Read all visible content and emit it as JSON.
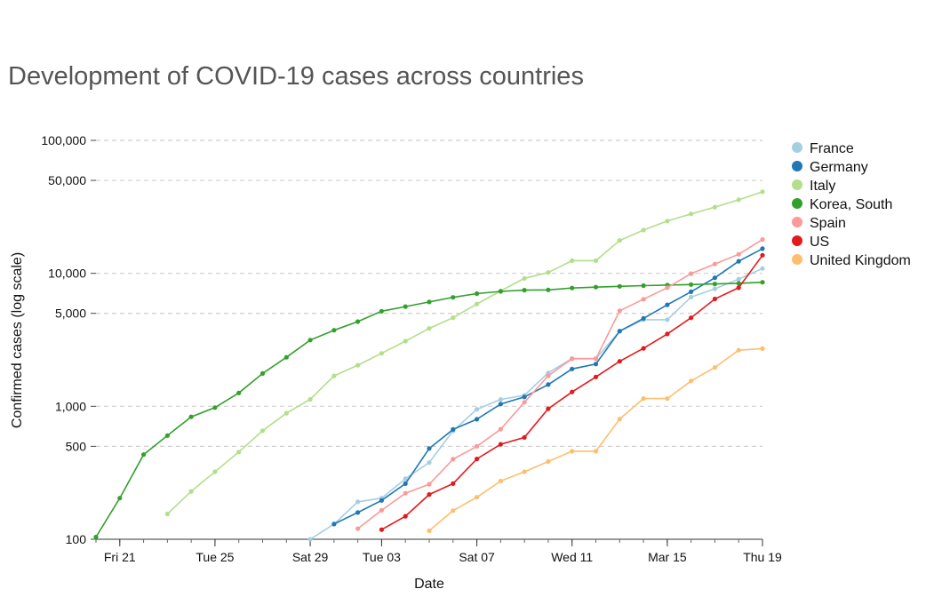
{
  "chart_data": {
    "type": "line",
    "title": "Development of COVID-19 cases across countries",
    "xlabel": "Date",
    "ylabel": "Confirmed cases (log scale)",
    "yscale": "log",
    "ylim": [
      100,
      100000
    ],
    "xlim": [
      "2020-02-20",
      "2020-03-19"
    ],
    "grid": "horizontal dashed",
    "legend_position": "right",
    "y_ticks": [
      {
        "value": 100,
        "label": "100"
      },
      {
        "value": 500,
        "label": "500"
      },
      {
        "value": 1000,
        "label": "1,000"
      },
      {
        "value": 5000,
        "label": "5,000"
      },
      {
        "value": 10000,
        "label": "10,000"
      },
      {
        "value": 50000,
        "label": "50,000"
      },
      {
        "value": 100000,
        "label": "100,000"
      }
    ],
    "x_ticks": [
      {
        "date": "2020-02-21",
        "label": "Fri 21"
      },
      {
        "date": "2020-02-25",
        "label": "Tue 25"
      },
      {
        "date": "2020-02-29",
        "label": "Sat 29"
      },
      {
        "date": "2020-03-03",
        "label": "Tue 03"
      },
      {
        "date": "2020-03-07",
        "label": "Sat 07"
      },
      {
        "date": "2020-03-11",
        "label": "Wed 11"
      },
      {
        "date": "2020-03-15",
        "label": "Mar 15"
      },
      {
        "date": "2020-03-19",
        "label": "Thu 19"
      }
    ],
    "x": [
      "2020-02-20",
      "2020-02-21",
      "2020-02-22",
      "2020-02-23",
      "2020-02-24",
      "2020-02-25",
      "2020-02-26",
      "2020-02-27",
      "2020-02-28",
      "2020-02-29",
      "2020-03-01",
      "2020-03-02",
      "2020-03-03",
      "2020-03-04",
      "2020-03-05",
      "2020-03-06",
      "2020-03-07",
      "2020-03-08",
      "2020-03-09",
      "2020-03-10",
      "2020-03-11",
      "2020-03-12",
      "2020-03-13",
      "2020-03-14",
      "2020-03-15",
      "2020-03-16",
      "2020-03-17",
      "2020-03-18",
      "2020-03-19"
    ],
    "series": [
      {
        "name": "France",
        "color": "#a6cee3",
        "values": [
          null,
          null,
          null,
          null,
          null,
          null,
          null,
          null,
          null,
          100,
          130,
          191,
          204,
          285,
          377,
          653,
          949,
          1126,
          1209,
          1784,
          2284,
          2284,
          3667,
          4480,
          4480,
          6633,
          7652,
          9043,
          10871
        ]
      },
      {
        "name": "Germany",
        "color": "#1f78b4",
        "values": [
          null,
          null,
          null,
          null,
          null,
          null,
          null,
          null,
          null,
          null,
          130,
          159,
          196,
          262,
          482,
          670,
          799,
          1040,
          1176,
          1457,
          1908,
          2078,
          3675,
          4585,
          5795,
          7272,
          9257,
          12327,
          15320
        ]
      },
      {
        "name": "Italy",
        "color": "#b2df8a",
        "values": [
          null,
          null,
          null,
          155,
          229,
          322,
          453,
          655,
          888,
          1128,
          1694,
          2036,
          2502,
          3089,
          3858,
          4636,
          5883,
          7375,
          9172,
          10149,
          12462,
          12462,
          17660,
          21157,
          24747,
          27980,
          31506,
          35713,
          41035
        ]
      },
      {
        "name": "Korea, South",
        "color": "#33a02c",
        "values": [
          104,
          204,
          433,
          602,
          833,
          977,
          1261,
          1766,
          2337,
          3150,
          3736,
          4335,
          5186,
          5621,
          6088,
          6593,
          7041,
          7314,
          7478,
          7513,
          7755,
          7869,
          7979,
          8086,
          8162,
          8236,
          8320,
          8413,
          8565
        ]
      },
      {
        "name": "Spain",
        "color": "#fb9a99",
        "values": [
          null,
          null,
          null,
          null,
          null,
          null,
          null,
          null,
          null,
          null,
          null,
          120,
          165,
          222,
          259,
          400,
          500,
          673,
          1073,
          1695,
          2277,
          2277,
          5232,
          6391,
          7798,
          9942,
          11748,
          13910,
          17963
        ]
      },
      {
        "name": "US",
        "color": "#e31a1c",
        "values": [
          null,
          null,
          null,
          null,
          null,
          null,
          null,
          null,
          null,
          null,
          null,
          null,
          118,
          149,
          217,
          262,
          402,
          518,
          583,
          959,
          1281,
          1663,
          2179,
          2726,
          3499,
          4632,
          6421,
          7786,
          13680
        ]
      },
      {
        "name": "United Kingdom",
        "color": "#fdbf6f",
        "values": [
          null,
          null,
          null,
          null,
          null,
          null,
          null,
          null,
          null,
          null,
          null,
          null,
          null,
          null,
          116,
          164,
          207,
          274,
          322,
          384,
          459,
          459,
          802,
          1144,
          1144,
          1551,
          1960,
          2642,
          2716
        ]
      }
    ]
  }
}
